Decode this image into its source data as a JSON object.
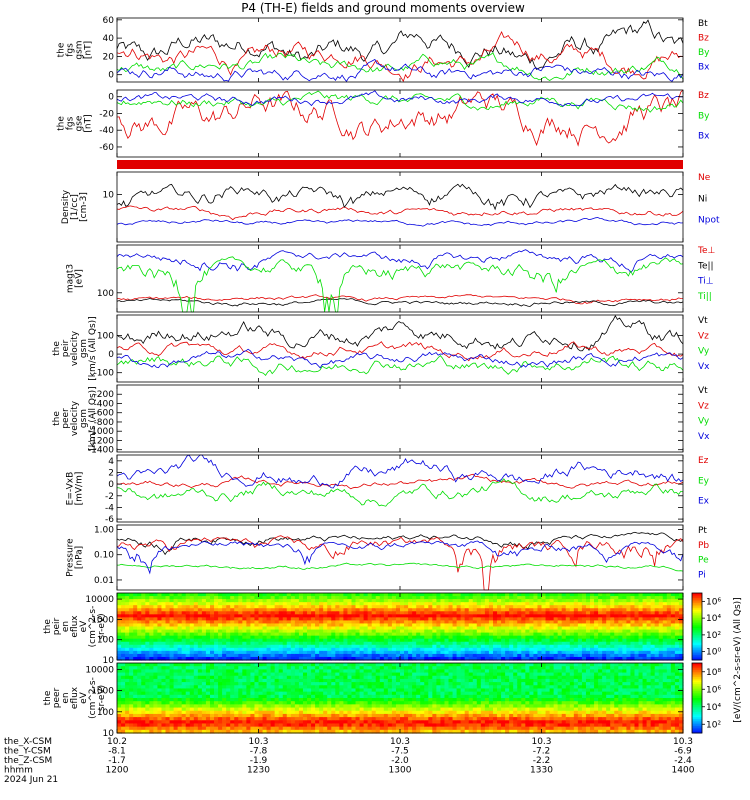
{
  "title": "P4 (TH-E) fields and ground moments overview",
  "colors": {
    "black": "#000000",
    "red": "#e00000",
    "green": "#00dd00",
    "blue": "#0000dd"
  },
  "x_axis": {
    "rows": [
      {
        "label": "the_X-CSM",
        "values": [
          "10.2",
          "10.3",
          "10.3",
          "10.3",
          "10.3"
        ]
      },
      {
        "label": "the_Y-CSM",
        "values": [
          "-8.1",
          "-7.8",
          "-7.5",
          "-7.2",
          "-6.9"
        ]
      },
      {
        "label": "the_Z-CSM",
        "values": [
          "-1.7",
          "-1.9",
          "-2.0",
          "-2.2",
          "-2.4"
        ]
      },
      {
        "label": "hhmm",
        "values": [
          "1200",
          "1230",
          "1300",
          "1330",
          "1400"
        ]
      }
    ],
    "date": "2024 Jun 21"
  },
  "chart_data": [
    {
      "type": "line",
      "ylabel": [
        "the",
        "fgs",
        "gsm",
        "[nT]"
      ],
      "ylim": [
        -8,
        62
      ],
      "ticks": [
        "0",
        "20",
        "40",
        "60"
      ],
      "tick_values": [
        0,
        20,
        40,
        60
      ],
      "log": false,
      "series": [
        {
          "name": "Bt",
          "color": "black",
          "mean": 28,
          "amp": 14,
          "noise": 7
        },
        {
          "name": "Bz",
          "color": "red",
          "mean": 20,
          "amp": 10,
          "noise": 6
        },
        {
          "name": "By",
          "color": "green",
          "mean": 8,
          "amp": 6,
          "noise": 4
        },
        {
          "name": "Bx",
          "color": "blue",
          "mean": 2,
          "amp": 5,
          "noise": 4
        }
      ]
    },
    {
      "type": "line",
      "ylabel": [
        "the",
        "fgs",
        "gse",
        "[nT]"
      ],
      "ylim": [
        -72,
        8
      ],
      "ticks": [
        "0",
        "-20",
        "-40",
        "-60"
      ],
      "tick_values": [
        0,
        -20,
        -40,
        -60
      ],
      "log": false,
      "series": [
        {
          "name": "Bz",
          "color": "red",
          "mean": -20,
          "amp": 12,
          "noise": 10
        },
        {
          "name": "By",
          "color": "green",
          "mean": -6,
          "amp": 5,
          "noise": 4
        },
        {
          "name": "Bx",
          "color": "blue",
          "mean": -3,
          "amp": 3,
          "noise": 3
        }
      ]
    },
    {
      "type": "bar",
      "note": "red status bar",
      "color": "red"
    },
    {
      "type": "line",
      "ylabel": [
        "Density",
        "[1/cc]",
        "[cm-3]"
      ],
      "ylim": [
        1,
        30
      ],
      "ticks": [
        "10"
      ],
      "tick_values": [
        10
      ],
      "log": true,
      "series": [
        {
          "name": "Ne",
          "color": "red",
          "mean": 4.5,
          "amp": 0.8,
          "noise": 0.4
        },
        {
          "name": "Ni",
          "color": "black",
          "mean": 10,
          "amp": 4,
          "noise": 2
        },
        {
          "name": "Npot",
          "color": "blue",
          "mean": 2.5,
          "amp": 0.3,
          "noise": 0.15
        }
      ]
    },
    {
      "type": "line",
      "ylabel": [
        "magt3",
        "[eV]"
      ],
      "ylim": [
        30,
        2000
      ],
      "ticks": [
        "100"
      ],
      "tick_values": [
        100
      ],
      "log": true,
      "series": [
        {
          "name": "Te⊥",
          "color": "red",
          "mean": 70,
          "amp": 8,
          "noise": 5
        },
        {
          "name": "Te||",
          "color": "black",
          "mean": 55,
          "amp": 5,
          "noise": 4
        },
        {
          "name": "Ti⊥",
          "color": "blue",
          "mean": 900,
          "amp": 250,
          "noise": 150
        },
        {
          "name": "Ti||",
          "color": "green",
          "mean": 400,
          "amp": 200,
          "noise": 120
        }
      ]
    },
    {
      "type": "line",
      "ylabel": [
        "the",
        "peir",
        "velocity",
        "gsm",
        "[km/s (All Qs)]"
      ],
      "ylim": [
        -150,
        210
      ],
      "ticks": [
        "100",
        "0",
        "-100"
      ],
      "tick_values": [
        100,
        0,
        -100
      ],
      "log": false,
      "series": [
        {
          "name": "Vt",
          "color": "black",
          "mean": 110,
          "amp": 40,
          "noise": 25
        },
        {
          "name": "Vz",
          "color": "red",
          "mean": 20,
          "amp": 25,
          "noise": 15
        },
        {
          "name": "Vy",
          "color": "green",
          "mean": -50,
          "amp": 30,
          "noise": 20
        },
        {
          "name": "Vx",
          "color": "blue",
          "mean": -30,
          "amp": 25,
          "noise": 15
        }
      ]
    },
    {
      "type": "line",
      "ylabel": [
        "the",
        "peer",
        "velocity",
        "gsm",
        "[km/s (All Qs)]"
      ],
      "ylim": [
        -1450,
        0
      ],
      "ticks": [
        "-200",
        "-400",
        "-600",
        "-800",
        "-1000",
        "-1200",
        "-1400"
      ],
      "tick_values": [
        -200,
        -400,
        -600,
        -800,
        -1000,
        -1200,
        -1400
      ],
      "log": false,
      "empty": true,
      "series": [
        {
          "name": "Vt",
          "color": "black"
        },
        {
          "name": "Vz",
          "color": "red"
        },
        {
          "name": "Vy",
          "color": "green"
        },
        {
          "name": "Vx",
          "color": "blue"
        }
      ]
    },
    {
      "type": "line",
      "ylabel": [
        "E=-VxB",
        "[mV/m]"
      ],
      "ylim": [
        -6.5,
        5
      ],
      "ticks": [
        "4",
        "2",
        "0",
        "-2",
        "-4",
        "-6"
      ],
      "tick_values": [
        4,
        2,
        0,
        -2,
        -4,
        -6
      ],
      "log": false,
      "series": [
        {
          "name": "Ez",
          "color": "red",
          "mean": 0.2,
          "amp": 0.4,
          "noise": 0.3
        },
        {
          "name": "Ey",
          "color": "green",
          "mean": -1.5,
          "amp": 1.0,
          "noise": 0.6
        },
        {
          "name": "Ex",
          "color": "blue",
          "mean": 1.8,
          "amp": 1.5,
          "noise": 0.7
        }
      ]
    },
    {
      "type": "line",
      "ylabel": [
        "Pressure",
        "[nPa]"
      ],
      "ylim": [
        0.004,
        1.5
      ],
      "ticks": [
        "1.00",
        "0.10",
        "0.01"
      ],
      "tick_values": [
        1,
        0.1,
        0.01
      ],
      "log": true,
      "series": [
        {
          "name": "Pt",
          "color": "black",
          "mean": 0.45,
          "amp": 0.1,
          "noise": 0.08
        },
        {
          "name": "Pb",
          "color": "red",
          "mean": 0.25,
          "amp": 0.12,
          "noise": 0.08
        },
        {
          "name": "Pe",
          "color": "green",
          "mean": 0.035,
          "amp": 0.004,
          "noise": 0.003
        },
        {
          "name": "Pi",
          "color": "blue",
          "mean": 0.2,
          "amp": 0.08,
          "noise": 0.05
        }
      ]
    },
    {
      "type": "heatmap",
      "ylabel": [
        "the",
        "peir",
        "en",
        "eflux",
        "eV",
        "(cm^2-s-",
        "sr-eV)"
      ],
      "ylim": [
        10,
        20000
      ],
      "ticks": [
        "10000",
        "1000",
        "100",
        "10"
      ],
      "tick_values": [
        10000,
        1000,
        100,
        10
      ],
      "log": true,
      "peak_energy": 1500,
      "colorbar_ticks": [
        "10⁶",
        "10⁴",
        "10²",
        "10⁰"
      ],
      "colorbar_range_exp": [
        -1,
        7
      ]
    },
    {
      "type": "heatmap",
      "ylabel": [
        "the",
        "peer",
        "en",
        "eflux",
        "eV",
        "(cm^2-s-",
        "sr-eV)"
      ],
      "ylim": [
        10,
        20000
      ],
      "ticks": [
        "10000",
        "1000",
        "100",
        "10"
      ],
      "tick_values": [
        10000,
        1000,
        100,
        10
      ],
      "log": true,
      "peak_energy": 30,
      "colorbar_ticks": [
        "10⁸",
        "10⁶",
        "10⁴",
        "10²"
      ],
      "colorbar_range_exp": [
        1,
        9
      ]
    }
  ],
  "colorbar_label": "[eV/(cm^2-s-sr-eV) (All Qs)]"
}
